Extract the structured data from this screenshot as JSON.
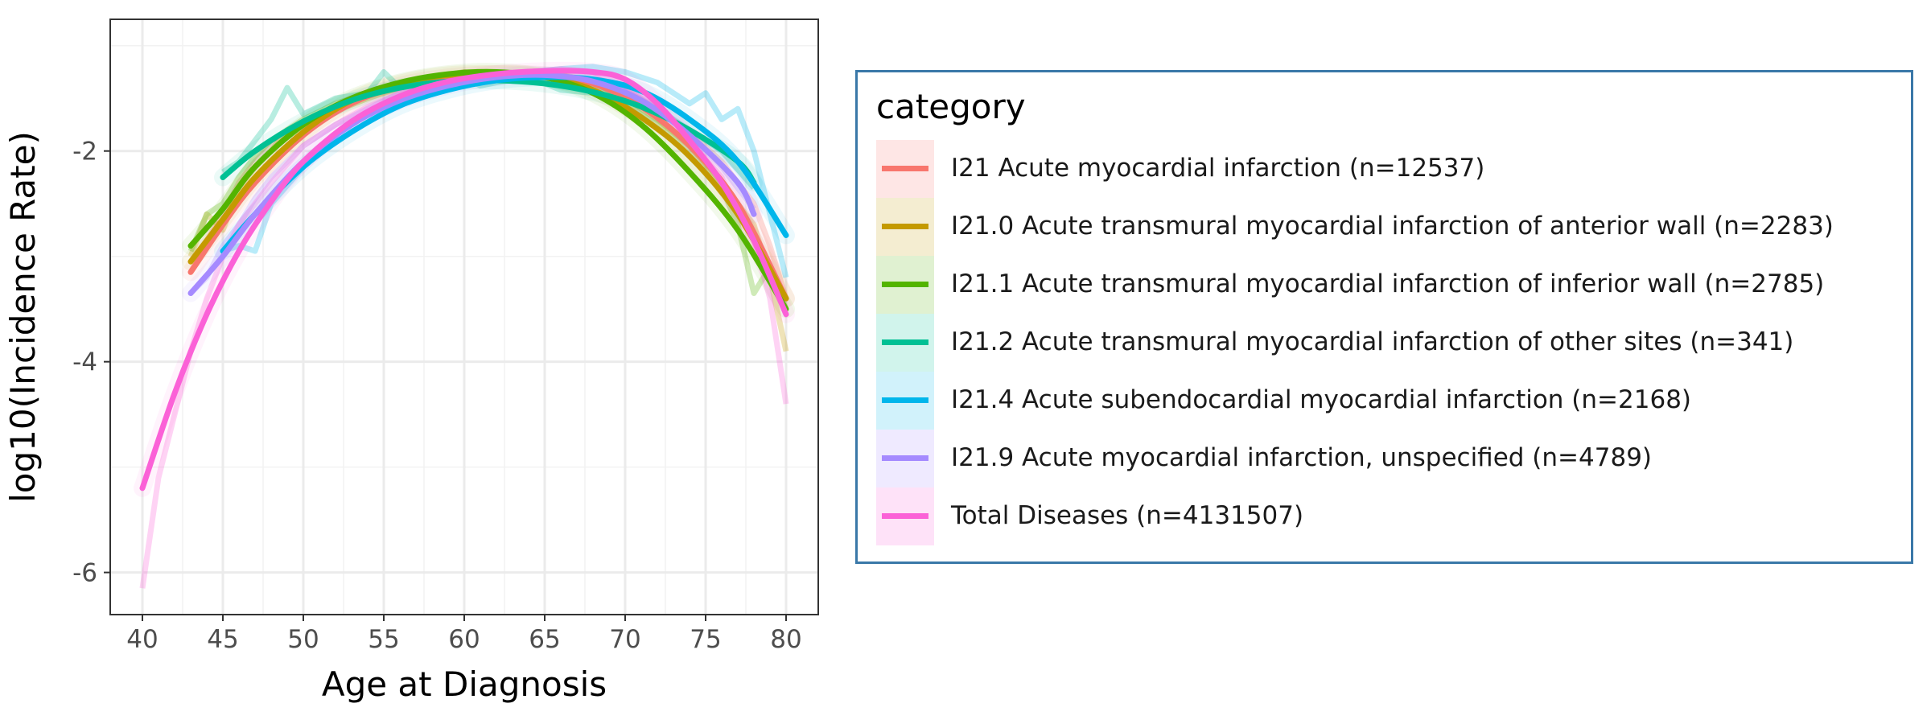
{
  "chart_data": {
    "type": "line",
    "title": "",
    "xlabel": "Age at Diagnosis",
    "ylabel": "log10(Incidence Rate)",
    "xlim": [
      38,
      82
    ],
    "ylim": [
      -6.4,
      -0.75
    ],
    "x_ticks": [
      40,
      45,
      50,
      55,
      60,
      65,
      70,
      75,
      80
    ],
    "y_ticks": [
      -2,
      -4,
      -6
    ],
    "grid": true,
    "legend_position": "right",
    "legend_title": "category",
    "series": [
      {
        "name": "I21 Acute myocardial infarction (n=12537)",
        "color": "#f8766d",
        "raw": [
          [
            43,
            -3.15
          ],
          [
            44,
            -2.85
          ],
          [
            45,
            -2.6
          ],
          [
            46,
            -2.3
          ],
          [
            47,
            -2.1
          ],
          [
            48,
            -1.95
          ],
          [
            49,
            -1.85
          ],
          [
            50,
            -1.72
          ],
          [
            52,
            -1.6
          ],
          [
            54,
            -1.48
          ],
          [
            56,
            -1.4
          ],
          [
            58,
            -1.33
          ],
          [
            60,
            -1.28
          ],
          [
            62,
            -1.27
          ],
          [
            64,
            -1.27
          ],
          [
            66,
            -1.28
          ],
          [
            68,
            -1.33
          ],
          [
            70,
            -1.42
          ],
          [
            72,
            -1.6
          ],
          [
            74,
            -1.82
          ],
          [
            76,
            -2.1
          ],
          [
            78,
            -2.5
          ],
          [
            79,
            -2.9
          ],
          [
            80,
            -3.4
          ]
        ],
        "smooth": [
          [
            43,
            -3.15
          ],
          [
            45,
            -2.7
          ],
          [
            47,
            -2.3
          ],
          [
            50,
            -1.85
          ],
          [
            53,
            -1.55
          ],
          [
            56,
            -1.38
          ],
          [
            59,
            -1.3
          ],
          [
            62,
            -1.27
          ],
          [
            65,
            -1.28
          ],
          [
            68,
            -1.36
          ],
          [
            71,
            -1.58
          ],
          [
            74,
            -1.95
          ],
          [
            77,
            -2.5
          ],
          [
            80,
            -3.4
          ]
        ]
      },
      {
        "name": "I21.0 Acute transmural myocardial infarction of anterior wall (n=2283)",
        "color": "#c49a00",
        "raw": [
          [
            43,
            -3.0
          ],
          [
            44,
            -2.6
          ],
          [
            45,
            -2.75
          ],
          [
            46,
            -2.35
          ],
          [
            47,
            -2.15
          ],
          [
            48,
            -2.0
          ],
          [
            49,
            -1.8
          ],
          [
            50,
            -1.75
          ],
          [
            52,
            -1.62
          ],
          [
            54,
            -1.5
          ],
          [
            56,
            -1.4
          ],
          [
            58,
            -1.32
          ],
          [
            60,
            -1.25
          ],
          [
            62,
            -1.3
          ],
          [
            64,
            -1.3
          ],
          [
            66,
            -1.28
          ],
          [
            68,
            -1.35
          ],
          [
            70,
            -1.5
          ],
          [
            72,
            -1.7
          ],
          [
            74,
            -1.95
          ],
          [
            76,
            -2.3
          ],
          [
            78,
            -2.7
          ],
          [
            79,
            -3.2
          ],
          [
            80,
            -3.9
          ]
        ],
        "smooth": [
          [
            43,
            -3.05
          ],
          [
            45,
            -2.65
          ],
          [
            47,
            -2.25
          ],
          [
            50,
            -1.82
          ],
          [
            53,
            -1.52
          ],
          [
            56,
            -1.36
          ],
          [
            59,
            -1.28
          ],
          [
            62,
            -1.27
          ],
          [
            65,
            -1.3
          ],
          [
            68,
            -1.42
          ],
          [
            71,
            -1.68
          ],
          [
            74,
            -2.05
          ],
          [
            77,
            -2.6
          ],
          [
            80,
            -3.4
          ]
        ]
      },
      {
        "name": "I21.1 Acute transmural myocardial infarction of inferior wall (n=2785)",
        "color": "#53b400",
        "raw": [
          [
            43,
            -2.95
          ],
          [
            44,
            -2.6
          ],
          [
            45,
            -2.5
          ],
          [
            46,
            -2.25
          ],
          [
            47,
            -2.05
          ],
          [
            48,
            -1.9
          ],
          [
            49,
            -1.8
          ],
          [
            50,
            -1.7
          ],
          [
            52,
            -1.55
          ],
          [
            54,
            -1.45
          ],
          [
            56,
            -1.38
          ],
          [
            58,
            -1.3
          ],
          [
            60,
            -1.25
          ],
          [
            62,
            -1.25
          ],
          [
            64,
            -1.3
          ],
          [
            66,
            -1.35
          ],
          [
            68,
            -1.4
          ],
          [
            70,
            -1.55
          ],
          [
            72,
            -1.75
          ],
          [
            74,
            -2.0
          ],
          [
            76,
            -2.35
          ],
          [
            77,
            -2.7
          ],
          [
            78,
            -3.35
          ],
          [
            79,
            -3.1
          ],
          [
            80,
            -3.5
          ]
        ],
        "smooth": [
          [
            43,
            -2.9
          ],
          [
            45,
            -2.55
          ],
          [
            47,
            -2.15
          ],
          [
            50,
            -1.75
          ],
          [
            53,
            -1.5
          ],
          [
            56,
            -1.35
          ],
          [
            59,
            -1.27
          ],
          [
            62,
            -1.25
          ],
          [
            65,
            -1.3
          ],
          [
            68,
            -1.45
          ],
          [
            71,
            -1.75
          ],
          [
            74,
            -2.2
          ],
          [
            77,
            -2.75
          ],
          [
            80,
            -3.5
          ]
        ]
      },
      {
        "name": "I21.2 Acute transmural myocardial infarction of other sites (n=341)",
        "color": "#00c094",
        "raw": [
          [
            45,
            -2.2
          ],
          [
            46,
            -2.1
          ],
          [
            47,
            -1.9
          ],
          [
            48,
            -1.7
          ],
          [
            49,
            -1.4
          ],
          [
            50,
            -1.65
          ],
          [
            52,
            -1.5
          ],
          [
            54,
            -1.45
          ],
          [
            55,
            -1.25
          ],
          [
            56,
            -1.4
          ],
          [
            58,
            -1.35
          ],
          [
            60,
            -1.3
          ],
          [
            61,
            -1.38
          ],
          [
            62,
            -1.35
          ],
          [
            64,
            -1.3
          ],
          [
            66,
            -1.42
          ],
          [
            68,
            -1.45
          ],
          [
            70,
            -1.5
          ],
          [
            72,
            -1.6
          ],
          [
            74,
            -1.8
          ],
          [
            76,
            -2.0
          ],
          [
            78,
            -2.35
          ]
        ],
        "smooth": [
          [
            45,
            -2.25
          ],
          [
            47,
            -2.0
          ],
          [
            50,
            -1.72
          ],
          [
            53,
            -1.52
          ],
          [
            56,
            -1.4
          ],
          [
            59,
            -1.34
          ],
          [
            62,
            -1.33
          ],
          [
            65,
            -1.36
          ],
          [
            68,
            -1.44
          ],
          [
            71,
            -1.58
          ],
          [
            74,
            -1.8
          ],
          [
            77,
            -2.1
          ],
          [
            78,
            -2.3
          ]
        ]
      },
      {
        "name": "I21.4 Acute subendocardial myocardial infarction (n=2168)",
        "color": "#00b6eb",
        "raw": [
          [
            45,
            -2.95
          ],
          [
            46,
            -2.9
          ],
          [
            47,
            -2.95
          ],
          [
            48,
            -2.5
          ],
          [
            50,
            -2.15
          ],
          [
            52,
            -1.85
          ],
          [
            54,
            -1.65
          ],
          [
            56,
            -1.5
          ],
          [
            58,
            -1.4
          ],
          [
            60,
            -1.35
          ],
          [
            62,
            -1.3
          ],
          [
            64,
            -1.25
          ],
          [
            66,
            -1.22
          ],
          [
            68,
            -1.2
          ],
          [
            70,
            -1.25
          ],
          [
            72,
            -1.35
          ],
          [
            74,
            -1.55
          ],
          [
            75,
            -1.45
          ],
          [
            76,
            -1.7
          ],
          [
            77,
            -1.6
          ],
          [
            78,
            -2.0
          ],
          [
            79,
            -2.6
          ],
          [
            80,
            -3.2
          ]
        ],
        "smooth": [
          [
            45,
            -2.95
          ],
          [
            47,
            -2.6
          ],
          [
            50,
            -2.15
          ],
          [
            53,
            -1.82
          ],
          [
            56,
            -1.57
          ],
          [
            59,
            -1.42
          ],
          [
            62,
            -1.33
          ],
          [
            65,
            -1.3
          ],
          [
            68,
            -1.32
          ],
          [
            71,
            -1.43
          ],
          [
            74,
            -1.7
          ],
          [
            77,
            -2.1
          ],
          [
            80,
            -2.8
          ]
        ]
      },
      {
        "name": "I21.9 Acute myocardial infarction, unspecified (n=4789)",
        "color": "#a58aff",
        "raw": [
          [
            43,
            -3.35
          ],
          [
            44,
            -3.2
          ],
          [
            45,
            -2.9
          ],
          [
            46,
            -2.7
          ],
          [
            47,
            -2.45
          ],
          [
            48,
            -2.25
          ],
          [
            50,
            -1.95
          ],
          [
            52,
            -1.75
          ],
          [
            54,
            -1.6
          ],
          [
            56,
            -1.45
          ],
          [
            58,
            -1.38
          ],
          [
            60,
            -1.32
          ],
          [
            62,
            -1.28
          ],
          [
            64,
            -1.27
          ],
          [
            66,
            -1.25
          ],
          [
            68,
            -1.3
          ],
          [
            70,
            -1.4
          ],
          [
            72,
            -1.6
          ],
          [
            74,
            -1.85
          ],
          [
            76,
            -2.15
          ],
          [
            78,
            -2.55
          ]
        ],
        "smooth": [
          [
            43,
            -3.35
          ],
          [
            45,
            -3.0
          ],
          [
            47,
            -2.6
          ],
          [
            50,
            -2.1
          ],
          [
            53,
            -1.75
          ],
          [
            56,
            -1.52
          ],
          [
            59,
            -1.38
          ],
          [
            62,
            -1.3
          ],
          [
            65,
            -1.28
          ],
          [
            68,
            -1.34
          ],
          [
            71,
            -1.52
          ],
          [
            74,
            -1.85
          ],
          [
            77,
            -2.3
          ],
          [
            78,
            -2.6
          ]
        ]
      },
      {
        "name": "Total Diseases (n=4131507)",
        "color": "#fb61d7",
        "raw": [
          [
            40,
            -6.15
          ],
          [
            41,
            -5.1
          ],
          [
            42,
            -4.5
          ],
          [
            43,
            -3.9
          ],
          [
            44,
            -3.4
          ],
          [
            45,
            -3.0
          ],
          [
            46,
            -2.7
          ],
          [
            48,
            -2.3
          ],
          [
            50,
            -1.95
          ],
          [
            52,
            -1.75
          ],
          [
            54,
            -1.58
          ],
          [
            56,
            -1.45
          ],
          [
            58,
            -1.37
          ],
          [
            60,
            -1.3
          ],
          [
            62,
            -1.27
          ],
          [
            64,
            -1.25
          ],
          [
            66,
            -1.22
          ],
          [
            68,
            -1.25
          ],
          [
            70,
            -1.38
          ],
          [
            72,
            -1.6
          ],
          [
            74,
            -1.9
          ],
          [
            76,
            -2.25
          ],
          [
            77,
            -2.6
          ],
          [
            78,
            -2.85
          ],
          [
            79,
            -3.4
          ],
          [
            80,
            -4.4
          ]
        ],
        "smooth": [
          [
            40,
            -5.2
          ],
          [
            42,
            -4.3
          ],
          [
            44,
            -3.55
          ],
          [
            46,
            -2.95
          ],
          [
            48,
            -2.48
          ],
          [
            50,
            -2.1
          ],
          [
            53,
            -1.72
          ],
          [
            56,
            -1.48
          ],
          [
            59,
            -1.34
          ],
          [
            62,
            -1.27
          ],
          [
            65,
            -1.24
          ],
          [
            68,
            -1.25
          ],
          [
            70,
            -1.32
          ],
          [
            72,
            -1.55
          ],
          [
            74,
            -1.9
          ],
          [
            76,
            -2.3
          ],
          [
            78,
            -2.85
          ],
          [
            80,
            -3.55
          ]
        ]
      }
    ]
  }
}
